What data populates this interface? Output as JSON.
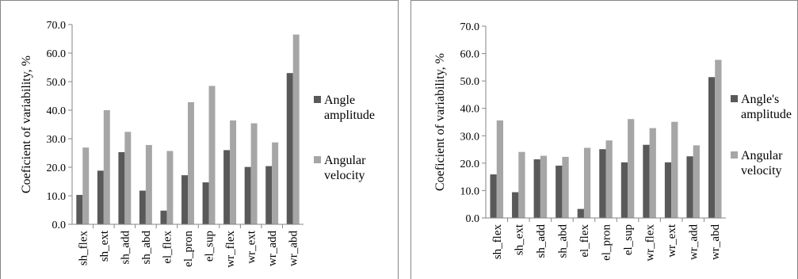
{
  "colors": {
    "angle_series": "#595959",
    "velocity_series": "#a6a6a6",
    "axis": "#868686"
  },
  "chart_data": [
    {
      "type": "bar",
      "title": "",
      "xlabel": "",
      "ylabel": "Coeficient of variability, %",
      "ylim": [
        0,
        70
      ],
      "yticks": [
        "0.0",
        "10.0",
        "20.0",
        "30.0",
        "40.0",
        "50.0",
        "60.0",
        "70.0"
      ],
      "grid": false,
      "legend_position": "right",
      "categories": [
        "sh_flex",
        "sh_ext",
        "sh_add",
        "sh_abd",
        "el_flex",
        "el_pron",
        "el_sup",
        "wr_flex",
        "wr_ext",
        "wr_add",
        "wr_abd"
      ],
      "series": [
        {
          "name": "Angle amplitude",
          "legend_lines": [
            "Angle",
            "amplitude"
          ],
          "values": [
            10.3,
            18.8,
            25.3,
            11.8,
            4.8,
            17.2,
            14.7,
            26.0,
            20.1,
            20.4,
            53.0
          ]
        },
        {
          "name": "Angular velocity",
          "legend_lines": [
            "Angular",
            "velocity"
          ],
          "values": [
            26.9,
            40.0,
            32.4,
            27.8,
            25.7,
            42.8,
            48.5,
            36.4,
            35.4,
            28.7,
            66.5
          ]
        }
      ]
    },
    {
      "type": "bar",
      "title": "",
      "xlabel": "",
      "ylabel": "Coeficient of variability, %",
      "ylim": [
        0,
        70
      ],
      "yticks": [
        "0.0",
        "10.0",
        "20.0",
        "30.0",
        "40.0",
        "50.0",
        "60.0",
        "70.0"
      ],
      "grid": false,
      "legend_position": "right",
      "categories": [
        "sh_flex",
        "sh_ext",
        "sh_add",
        "sh_abd",
        "el_flex",
        "el_pron",
        "el_sup",
        "wr_flex",
        "wr_ext",
        "wr_add",
        "wr_abd"
      ],
      "series": [
        {
          "name": "Angle's amplitude",
          "legend_lines": [
            "Angle's",
            "amplitude"
          ],
          "values": [
            15.9,
            9.4,
            21.4,
            19.1,
            3.3,
            25.1,
            20.3,
            26.7,
            20.3,
            22.5,
            51.4
          ]
        },
        {
          "name": "Angular velocity",
          "legend_lines": [
            "Angular",
            "velocity"
          ],
          "values": [
            35.6,
            24.1,
            22.7,
            22.3,
            25.6,
            28.3,
            36.1,
            32.8,
            35.1,
            26.5,
            57.7
          ]
        }
      ]
    }
  ]
}
